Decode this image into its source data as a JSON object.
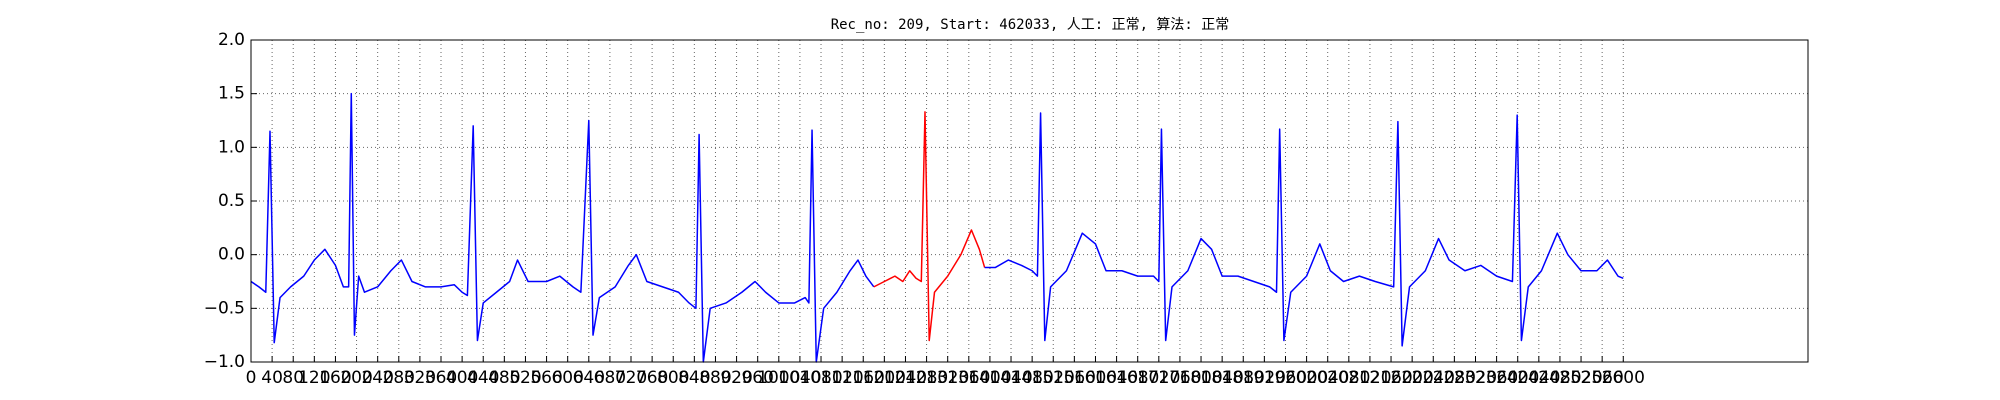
{
  "chart_data": {
    "type": "line",
    "title": "Rec_no: 209, Start: 462033, 人工: 正常, 算法: 正常",
    "xlim": [
      0,
      2950
    ],
    "xticks": [
      0,
      40,
      80,
      120,
      160,
      200,
      240,
      280,
      320,
      360,
      400,
      440,
      480,
      520,
      560,
      600,
      640,
      680,
      720,
      760,
      800,
      840,
      880,
      920,
      960,
      1000,
      1040,
      1080,
      1120,
      1160,
      1200,
      1240,
      1280,
      1320,
      1360,
      1400,
      1440,
      1480,
      1520,
      1560,
      1600,
      1640,
      1680,
      1720,
      1760,
      1800,
      1840,
      1880,
      1920,
      1960,
      2000,
      2040,
      2080,
      2120,
      2160,
      2200,
      2240,
      2280,
      2320,
      2360,
      2400,
      2440,
      2480,
      2520,
      2560,
      2600
    ],
    "ylim": [
      -1,
      2
    ],
    "yticks": [
      {
        "value": -1,
        "label": "−1.0"
      },
      {
        "value": -0.5,
        "label": "−0.5"
      },
      {
        "value": 0,
        "label": "0.0"
      },
      {
        "value": 0.5,
        "label": "0.5"
      },
      {
        "value": 1,
        "label": "1.0"
      },
      {
        "value": 1.5,
        "label": "1.5"
      },
      {
        "value": 2,
        "label": "2.0"
      }
    ],
    "grid": true,
    "series": [
      {
        "color": "#0000ff",
        "x": [
          0,
          15,
          28,
          36,
          44,
          55,
          75,
          100,
          120,
          140,
          160,
          175,
          185,
          190,
          196,
          204,
          215,
          240,
          265,
          285,
          305,
          330,
          360,
          385,
          400,
          410,
          421,
          429,
          440,
          465,
          490,
          505,
          525,
          560,
          585,
          610,
          625,
          640,
          648,
          660,
          690,
          715,
          730,
          750,
          780,
          810,
          830,
          843,
          849,
          857,
          870,
          900,
          930,
          955,
          975,
          1000,
          1030,
          1050,
          1057,
          1063,
          1071,
          1085,
          1110,
          1135,
          1150,
          1165,
          1180
        ],
        "values": [
          -0.25,
          -0.3,
          -0.35,
          1.15,
          -0.82,
          -0.4,
          -0.3,
          -0.2,
          -0.05,
          0.05,
          -0.1,
          -0.3,
          -0.3,
          1.5,
          -0.75,
          -0.2,
          -0.35,
          -0.3,
          -0.15,
          -0.05,
          -0.25,
          -0.3,
          -0.3,
          -0.28,
          -0.35,
          -0.38,
          1.2,
          -0.8,
          -0.45,
          -0.35,
          -0.25,
          -0.05,
          -0.25,
          -0.25,
          -0.2,
          -0.3,
          -0.35,
          1.25,
          -0.75,
          -0.4,
          -0.3,
          -0.1,
          0.0,
          -0.25,
          -0.3,
          -0.35,
          -0.45,
          -0.5,
          1.12,
          -1.0,
          -0.5,
          -0.45,
          -0.35,
          -0.25,
          -0.35,
          -0.45,
          -0.45,
          -0.4,
          -0.45,
          1.16,
          -1.0,
          -0.5,
          -0.35,
          -0.15,
          -0.05,
          -0.2,
          -0.3
        ]
      },
      {
        "color": "#ff0000",
        "x": [
          1180,
          1200,
          1220,
          1235,
          1248,
          1260,
          1270,
          1277,
          1285,
          1295,
          1320,
          1345,
          1365,
          1380,
          1390
        ],
        "values": [
          -0.3,
          -0.25,
          -0.2,
          -0.25,
          -0.15,
          -0.22,
          -0.25,
          1.33,
          -0.8,
          -0.35,
          -0.2,
          0.0,
          0.23,
          0.05,
          -0.12
        ]
      },
      {
        "color": "#0000ff",
        "x": [
          1390,
          1410,
          1435,
          1460,
          1480,
          1490,
          1496,
          1504,
          1515,
          1545,
          1575,
          1600,
          1620,
          1650,
          1680,
          1710,
          1720,
          1725,
          1733,
          1745,
          1775,
          1800,
          1820,
          1840,
          1870,
          1900,
          1930,
          1943,
          1949,
          1957,
          1970,
          2000,
          2025,
          2045,
          2070,
          2100,
          2130,
          2165,
          2173,
          2181,
          2195,
          2225,
          2250,
          2270,
          2300,
          2330,
          2360,
          2390,
          2399,
          2407,
          2420,
          2445,
          2475,
          2495,
          2520,
          2550,
          2570,
          2590,
          2600
        ],
        "values": [
          -0.12,
          -0.12,
          -0.05,
          -0.1,
          -0.15,
          -0.2,
          1.32,
          -0.8,
          -0.3,
          -0.15,
          0.2,
          0.1,
          -0.15,
          -0.15,
          -0.2,
          -0.2,
          -0.25,
          1.17,
          -0.8,
          -0.3,
          -0.15,
          0.15,
          0.05,
          -0.2,
          -0.2,
          -0.25,
          -0.3,
          -0.35,
          1.17,
          -0.8,
          -0.35,
          -0.2,
          0.1,
          -0.15,
          -0.25,
          -0.2,
          -0.25,
          -0.3,
          1.24,
          -0.85,
          -0.3,
          -0.15,
          0.15,
          -0.05,
          -0.15,
          -0.1,
          -0.2,
          -0.25,
          1.3,
          -0.8,
          -0.3,
          -0.15,
          0.2,
          0.0,
          -0.15,
          -0.15,
          -0.05,
          -0.2,
          -0.22
        ]
      }
    ]
  }
}
